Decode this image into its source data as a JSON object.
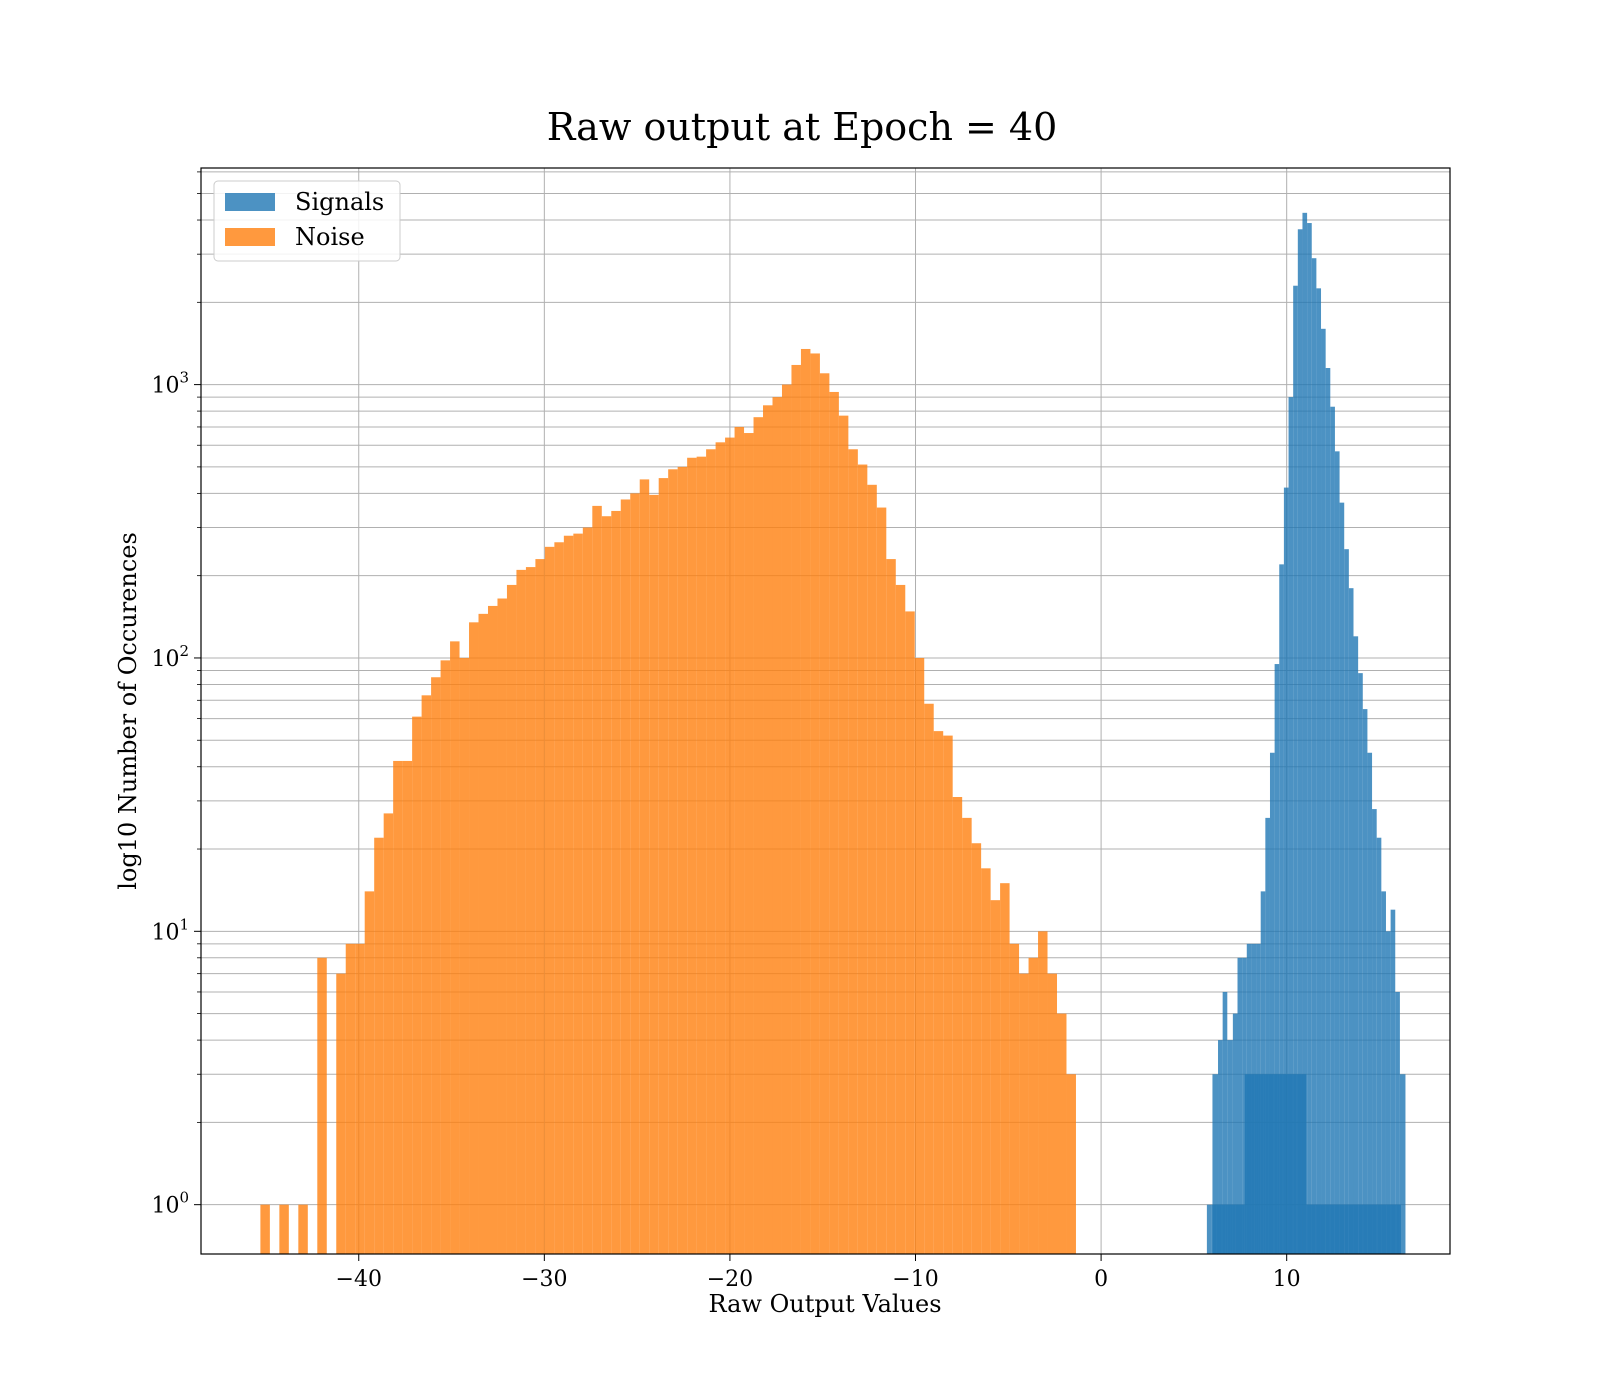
{
  "chart_data": {
    "type": "bar",
    "title": "Raw output at Epoch = 40",
    "xlabel": "Raw Output Values",
    "ylabel": "log10 Number of Occurences",
    "xlim": [
      -48.5,
      18.8
    ],
    "ylim": [
      0.66,
      6200
    ],
    "yscale": "log",
    "grid": true,
    "legend_position": "top-left",
    "x_ticks": [
      {
        "value": -40,
        "label": "−40"
      },
      {
        "value": -30,
        "label": "−30"
      },
      {
        "value": -20,
        "label": "−20"
      },
      {
        "value": -10,
        "label": "−10"
      },
      {
        "value": 0,
        "label": "0"
      },
      {
        "value": 10,
        "label": "10"
      }
    ],
    "y_ticks": [
      {
        "value": 1,
        "base": "10",
        "exp": "0"
      },
      {
        "value": 10,
        "base": "10",
        "exp": "1"
      },
      {
        "value": 100,
        "base": "10",
        "exp": "2"
      },
      {
        "value": 1000,
        "base": "10",
        "exp": "3"
      }
    ],
    "series": [
      {
        "name": "Signals",
        "color": "#1f77b4",
        "opacity": 0.8,
        "bin_start": 5.7,
        "bin_width": 0.255,
        "counts": [
          1,
          1,
          1,
          1,
          1,
          1,
          1,
          1,
          3,
          3,
          3,
          3,
          3,
          3,
          3,
          3,
          3,
          3,
          3,
          3,
          3,
          1,
          1,
          1,
          1,
          1,
          1,
          1,
          1,
          1,
          1,
          1,
          1,
          1,
          1,
          1,
          1,
          1,
          1,
          1,
          1
        ],
        "profile": [
          [
            6.0,
            3
          ],
          [
            6.3,
            4
          ],
          [
            6.55,
            6
          ],
          [
            6.8,
            4
          ],
          [
            7.1,
            5
          ],
          [
            7.35,
            8
          ],
          [
            7.6,
            8
          ],
          [
            7.85,
            9
          ],
          [
            8.1,
            9
          ],
          [
            8.35,
            9
          ],
          [
            8.6,
            14
          ],
          [
            8.85,
            26
          ],
          [
            9.1,
            45
          ],
          [
            9.35,
            95
          ],
          [
            9.6,
            220
          ],
          [
            9.85,
            420
          ],
          [
            10.1,
            900
          ],
          [
            10.35,
            2300
          ],
          [
            10.6,
            3700
          ],
          [
            10.85,
            4250
          ],
          [
            11.1,
            3900
          ],
          [
            11.35,
            2900
          ],
          [
            11.6,
            2250
          ],
          [
            11.85,
            1600
          ],
          [
            12.1,
            1150
          ],
          [
            12.35,
            830
          ],
          [
            12.6,
            570
          ],
          [
            12.85,
            370
          ],
          [
            13.1,
            250
          ],
          [
            13.35,
            180
          ],
          [
            13.6,
            120
          ],
          [
            13.85,
            88
          ],
          [
            14.1,
            65
          ],
          [
            14.35,
            45
          ],
          [
            14.6,
            28
          ],
          [
            14.85,
            22
          ],
          [
            15.1,
            14
          ],
          [
            15.35,
            10
          ],
          [
            15.6,
            12
          ],
          [
            15.85,
            6
          ],
          [
            16.1,
            3
          ],
          [
            16.4,
            1
          ]
        ]
      },
      {
        "name": "Noise",
        "color": "#ff7f0e",
        "opacity": 0.8,
        "bin_start": -45.3,
        "bin_width": 0.511,
        "counts": [
          1,
          0,
          1,
          0,
          1,
          0,
          8,
          0,
          7,
          9,
          9,
          14,
          22,
          27,
          42,
          42,
          61,
          73,
          85,
          98,
          115,
          100,
          135,
          145,
          155,
          165,
          185,
          210,
          215,
          230,
          255,
          265,
          280,
          285,
          300,
          360,
          330,
          345,
          380,
          400,
          450,
          395,
          455,
          490,
          500,
          540,
          545,
          580,
          615,
          640,
          700,
          665,
          760,
          840,
          900,
          1000,
          1180,
          1350,
          1300,
          1100,
          940,
          770,
          580,
          510,
          430,
          355,
          230,
          185,
          148,
          100,
          68,
          54,
          52,
          31,
          26,
          21,
          17,
          13,
          15,
          9,
          7,
          8,
          10,
          7,
          5,
          3
        ]
      }
    ]
  },
  "legend": [
    {
      "label": "Signals",
      "color": "#1f77b4"
    },
    {
      "label": "Noise",
      "color": "#ff7f0e"
    }
  ]
}
